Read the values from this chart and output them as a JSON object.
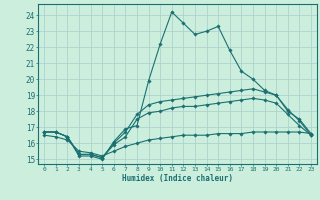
{
  "xlabel": "Humidex (Indice chaleur)",
  "background_color": "#cceedd",
  "grid_color": "#aacccc",
  "line_color": "#1a7070",
  "xlim": [
    -0.5,
    23.5
  ],
  "ylim": [
    14.7,
    24.7
  ],
  "yticks": [
    15,
    16,
    17,
    18,
    19,
    20,
    21,
    22,
    23,
    24
  ],
  "xticks": [
    0,
    1,
    2,
    3,
    4,
    5,
    6,
    7,
    8,
    9,
    10,
    11,
    12,
    13,
    14,
    15,
    16,
    17,
    18,
    19,
    20,
    21,
    22,
    23
  ],
  "line1_x": [
    0,
    1,
    2,
    3,
    4,
    5,
    6,
    7,
    8,
    9,
    10,
    11,
    12,
    13,
    14,
    15,
    16,
    17,
    18,
    19,
    20,
    21,
    22,
    23
  ],
  "line1_y": [
    16.7,
    16.7,
    16.4,
    15.2,
    15.2,
    15.0,
    16.1,
    16.9,
    17.1,
    19.9,
    22.2,
    24.2,
    23.5,
    22.8,
    23.0,
    23.3,
    21.8,
    20.5,
    20.0,
    19.3,
    19.0,
    18.0,
    17.5,
    16.6
  ],
  "line2_x": [
    0,
    1,
    2,
    3,
    4,
    5,
    6,
    7,
    8,
    9,
    10,
    11,
    12,
    13,
    14,
    15,
    16,
    17,
    18,
    19,
    20,
    21,
    22,
    23
  ],
  "line2_y": [
    16.7,
    16.7,
    16.4,
    15.3,
    15.3,
    15.1,
    16.0,
    16.7,
    17.8,
    18.4,
    18.6,
    18.7,
    18.8,
    18.9,
    19.0,
    19.1,
    19.2,
    19.3,
    19.4,
    19.2,
    19.0,
    18.1,
    17.4,
    16.5
  ],
  "line3_x": [
    0,
    1,
    2,
    3,
    4,
    5,
    6,
    7,
    8,
    9,
    10,
    11,
    12,
    13,
    14,
    15,
    16,
    17,
    18,
    19,
    20,
    21,
    22,
    23
  ],
  "line3_y": [
    16.7,
    16.7,
    16.4,
    15.3,
    15.3,
    15.1,
    15.9,
    16.4,
    17.5,
    17.9,
    18.0,
    18.2,
    18.3,
    18.3,
    18.4,
    18.5,
    18.6,
    18.7,
    18.8,
    18.7,
    18.5,
    17.8,
    17.1,
    16.5
  ],
  "line4_x": [
    0,
    1,
    2,
    3,
    4,
    5,
    6,
    7,
    8,
    9,
    10,
    11,
    12,
    13,
    14,
    15,
    16,
    17,
    18,
    19,
    20,
    21,
    22,
    23
  ],
  "line4_y": [
    16.5,
    16.4,
    16.2,
    15.5,
    15.4,
    15.2,
    15.5,
    15.8,
    16.0,
    16.2,
    16.3,
    16.4,
    16.5,
    16.5,
    16.5,
    16.6,
    16.6,
    16.6,
    16.7,
    16.7,
    16.7,
    16.7,
    16.7,
    16.6
  ]
}
